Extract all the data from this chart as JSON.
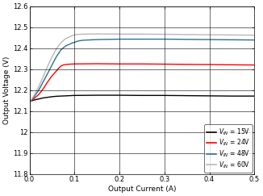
{
  "title": "",
  "xlabel": "Output Current (A)",
  "ylabel": "Output Voltage (V)",
  "xlim": [
    0,
    0.5
  ],
  "ylim": [
    11.8,
    12.6
  ],
  "yticks": [
    11.8,
    11.9,
    12.0,
    12.1,
    12.2,
    12.3,
    12.4,
    12.5,
    12.6
  ],
  "xticks": [
    0,
    0.1,
    0.2,
    0.3,
    0.4,
    0.5
  ],
  "series": [
    {
      "label": "V_IN = 15V",
      "color": "#000000",
      "points": [
        [
          0.0,
          12.148
        ],
        [
          0.005,
          12.15
        ],
        [
          0.01,
          12.153
        ],
        [
          0.02,
          12.158
        ],
        [
          0.03,
          12.163
        ],
        [
          0.04,
          12.166
        ],
        [
          0.05,
          12.169
        ],
        [
          0.06,
          12.171
        ],
        [
          0.07,
          12.172
        ],
        [
          0.08,
          12.173
        ],
        [
          0.09,
          12.174
        ],
        [
          0.1,
          12.175
        ],
        [
          0.15,
          12.176
        ],
        [
          0.2,
          12.176
        ],
        [
          0.25,
          12.175
        ],
        [
          0.3,
          12.175
        ],
        [
          0.35,
          12.174
        ],
        [
          0.4,
          12.173
        ],
        [
          0.45,
          12.172
        ],
        [
          0.5,
          12.172
        ]
      ]
    },
    {
      "label": "V_IN = 24V",
      "color": "#ff0000",
      "points": [
        [
          0.0,
          12.148
        ],
        [
          0.005,
          12.152
        ],
        [
          0.01,
          12.16
        ],
        [
          0.02,
          12.178
        ],
        [
          0.03,
          12.205
        ],
        [
          0.04,
          12.238
        ],
        [
          0.05,
          12.268
        ],
        [
          0.06,
          12.292
        ],
        [
          0.065,
          12.305
        ],
        [
          0.07,
          12.315
        ],
        [
          0.075,
          12.32
        ],
        [
          0.08,
          12.322
        ],
        [
          0.09,
          12.324
        ],
        [
          0.1,
          12.325
        ],
        [
          0.15,
          12.326
        ],
        [
          0.2,
          12.325
        ],
        [
          0.25,
          12.325
        ],
        [
          0.3,
          12.324
        ],
        [
          0.35,
          12.323
        ],
        [
          0.4,
          12.322
        ],
        [
          0.45,
          12.321
        ],
        [
          0.5,
          12.32
        ]
      ]
    },
    {
      "label": "V_IN = 48V",
      "color": "#2e6e8e",
      "points": [
        [
          0.0,
          12.148
        ],
        [
          0.005,
          12.155
        ],
        [
          0.01,
          12.168
        ],
        [
          0.02,
          12.198
        ],
        [
          0.03,
          12.238
        ],
        [
          0.04,
          12.278
        ],
        [
          0.05,
          12.32
        ],
        [
          0.06,
          12.36
        ],
        [
          0.07,
          12.392
        ],
        [
          0.08,
          12.41
        ],
        [
          0.09,
          12.42
        ],
        [
          0.095,
          12.425
        ],
        [
          0.1,
          12.428
        ],
        [
          0.105,
          12.432
        ],
        [
          0.11,
          12.435
        ],
        [
          0.12,
          12.438
        ],
        [
          0.15,
          12.441
        ],
        [
          0.2,
          12.443
        ],
        [
          0.25,
          12.443
        ],
        [
          0.3,
          12.443
        ],
        [
          0.35,
          12.442
        ],
        [
          0.4,
          12.441
        ],
        [
          0.45,
          12.44
        ],
        [
          0.5,
          12.439
        ]
      ]
    },
    {
      "label": "V_IN = 60V",
      "color": "#b8b8b8",
      "points": [
        [
          0.0,
          12.148
        ],
        [
          0.005,
          12.158
        ],
        [
          0.01,
          12.175
        ],
        [
          0.02,
          12.215
        ],
        [
          0.03,
          12.262
        ],
        [
          0.04,
          12.312
        ],
        [
          0.05,
          12.358
        ],
        [
          0.06,
          12.398
        ],
        [
          0.07,
          12.426
        ],
        [
          0.08,
          12.445
        ],
        [
          0.09,
          12.455
        ],
        [
          0.095,
          12.46
        ],
        [
          0.1,
          12.463
        ],
        [
          0.105,
          12.465
        ],
        [
          0.11,
          12.466
        ],
        [
          0.12,
          12.467
        ],
        [
          0.15,
          12.468
        ],
        [
          0.2,
          12.467
        ],
        [
          0.25,
          12.467
        ],
        [
          0.3,
          12.466
        ],
        [
          0.35,
          12.465
        ],
        [
          0.4,
          12.464
        ],
        [
          0.45,
          12.463
        ],
        [
          0.5,
          12.462
        ]
      ]
    }
  ]
}
